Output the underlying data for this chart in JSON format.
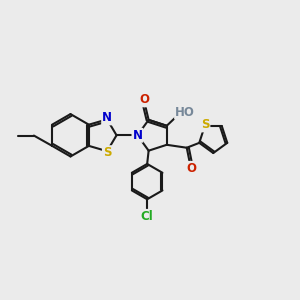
{
  "bg_color": "#ebebeb",
  "bond_color": "#1a1a1a",
  "bond_width": 1.5,
  "atom_colors": {
    "S": "#ccaa00",
    "N": "#0000cc",
    "O": "#cc2200",
    "Cl": "#22aa22",
    "C": "#1a1a1a",
    "H": "#778899"
  },
  "font_size": 8.5,
  "figsize": [
    3.0,
    3.0
  ],
  "dpi": 100
}
